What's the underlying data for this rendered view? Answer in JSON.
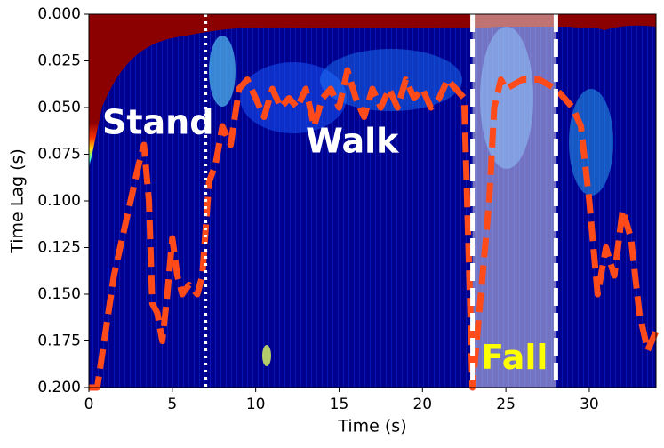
{
  "chart_data": {
    "type": "line",
    "xlabel": "Time (s)",
    "ylabel": "Time Lag (s)",
    "xlim": [
      0,
      34
    ],
    "ylim": [
      0.2,
      0
    ],
    "xticks": [
      0,
      5,
      10,
      15,
      20,
      25,
      30
    ],
    "yticks": [
      {
        "value": 0,
        "label": "0.000"
      },
      {
        "value": 0.025,
        "label": "0.025"
      },
      {
        "value": 0.05,
        "label": "0.050"
      },
      {
        "value": 0.075,
        "label": "0.075"
      },
      {
        "value": 0.1,
        "label": "0.100"
      },
      {
        "value": 0.125,
        "label": "0.125"
      },
      {
        "value": 0.15,
        "label": "0.150"
      },
      {
        "value": 0.175,
        "label": "0.175"
      },
      {
        "value": 0.2,
        "label": "0.200"
      }
    ],
    "series": [
      {
        "color": "#ff4a1a",
        "x": [
          0,
          0.5,
          1,
          1.5,
          2,
          2.5,
          3,
          3.3,
          3.6,
          3.8,
          4.1,
          4.4,
          4.7,
          5,
          5.3,
          5.6,
          6,
          6.5,
          6.8,
          7.2,
          7.6,
          8,
          8.5,
          9,
          9.5,
          10,
          10.5,
          11,
          11.5,
          12,
          12.5,
          13,
          13.5,
          14,
          14.5,
          15,
          15.5,
          16,
          16.5,
          17,
          17.5,
          18,
          18.5,
          19,
          19.5,
          20,
          20.5,
          21,
          21.5,
          22,
          22.5,
          23,
          23.5,
          24,
          24.3,
          24.7,
          25,
          26,
          27,
          28,
          28.5,
          29,
          29.5,
          30,
          30.5,
          31,
          31.5,
          32,
          32.5,
          33,
          33.5,
          34
        ],
        "values": [
          0.2,
          0.2,
          0.17,
          0.14,
          0.12,
          0.1,
          0.08,
          0.07,
          0.1,
          0.155,
          0.16,
          0.175,
          0.15,
          0.12,
          0.14,
          0.15,
          0.145,
          0.15,
          0.14,
          0.09,
          0.08,
          0.06,
          0.07,
          0.04,
          0.035,
          0.045,
          0.055,
          0.04,
          0.05,
          0.045,
          0.05,
          0.04,
          0.06,
          0.045,
          0.04,
          0.05,
          0.03,
          0.045,
          0.055,
          0.04,
          0.05,
          0.04,
          0.05,
          0.035,
          0.045,
          0.04,
          0.05,
          0.045,
          0.035,
          0.04,
          0.045,
          0.2,
          0.15,
          0.1,
          0.05,
          0.035,
          0.04,
          0.035,
          0.035,
          0.04,
          0.045,
          0.05,
          0.06,
          0.1,
          0.15,
          0.125,
          0.14,
          0.105,
          0.12,
          0.16,
          0.18,
          0.17
        ]
      }
    ],
    "span": {
      "x": [
        23,
        28
      ],
      "color": "#ffffff"
    },
    "vlines": [
      {
        "x": 7,
        "style": "dotted"
      },
      {
        "x": 23,
        "style": "dashed"
      },
      {
        "x": 28,
        "style": "dashed"
      }
    ],
    "annotations": [
      {
        "text": "Stand",
        "x": 0.8,
        "y": 0.059,
        "color": "#ffffff"
      },
      {
        "text": "Walk",
        "x": 13,
        "y": 0.069,
        "color": "#ffffff"
      },
      {
        "text": "Fall",
        "x": 23.5,
        "y": 0.185,
        "color": "#ffff00"
      }
    ]
  }
}
